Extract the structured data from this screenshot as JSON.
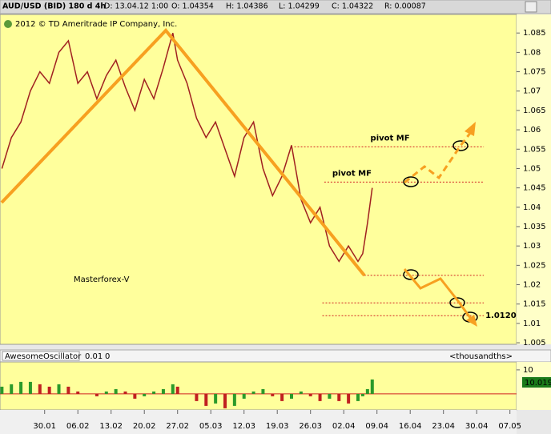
{
  "header": {
    "symbol": "AUD/USD (BID) 180 d 4h",
    "date": "D: 13.04.12 1:00",
    "open": "O: 1.04354",
    "high": "H: 1.04386",
    "low": "L: 1.04299",
    "close": "C: 1.04322",
    "range": "R: 0.00087"
  },
  "copyright": "2012 © TD Ameritrade IP Company, Inc.",
  "chart_data": [
    {
      "type": "line",
      "watermark": "Masterforex-V",
      "color": "#a02020",
      "x": [
        -9,
        -7,
        -5,
        -3,
        -1,
        1,
        3,
        5,
        7,
        9,
        11,
        13,
        15,
        17,
        19,
        21,
        23,
        25,
        27,
        28,
        30,
        32,
        34,
        36,
        38,
        40,
        42,
        44,
        46,
        48,
        50,
        52,
        54,
        56,
        58,
        60,
        62,
        64,
        66,
        67,
        68,
        69
      ],
      "values": [
        1.05,
        1.058,
        1.062,
        1.07,
        1.075,
        1.072,
        1.08,
        1.083,
        1.072,
        1.075,
        1.068,
        1.074,
        1.078,
        1.071,
        1.065,
        1.073,
        1.068,
        1.076,
        1.085,
        1.078,
        1.072,
        1.063,
        1.058,
        1.062,
        1.055,
        1.048,
        1.058,
        1.062,
        1.05,
        1.043,
        1.048,
        1.056,
        1.042,
        1.036,
        1.04,
        1.03,
        1.026,
        1.03,
        1.026,
        1.028,
        1.036,
        1.045
      ],
      "xlim": [
        -9.4,
        99.4
      ],
      "xticks": [
        {
          "value": 0,
          "label": "30.01"
        },
        {
          "value": 7,
          "label": "06.02"
        },
        {
          "value": 14,
          "label": "13.02"
        },
        {
          "value": 21,
          "label": "20.02"
        },
        {
          "value": 28,
          "label": "27.02"
        },
        {
          "value": 35,
          "label": "05.03"
        },
        {
          "value": 42,
          "label": "12.03"
        },
        {
          "value": 49,
          "label": "19.03"
        },
        {
          "value": 56,
          "label": "26.03"
        },
        {
          "value": 63,
          "label": "02.04"
        },
        {
          "value": 70,
          "label": "09.04"
        },
        {
          "value": 77,
          "label": "16.04"
        },
        {
          "value": 84,
          "label": "23.04"
        },
        {
          "value": 91,
          "label": "30.04"
        },
        {
          "value": 98,
          "label": "07.05"
        }
      ],
      "ylim": [
        1.0046,
        1.0898
      ],
      "yticks": [
        1.005,
        1.01,
        1.015,
        1.02,
        1.025,
        1.03,
        1.035,
        1.04,
        1.045,
        1.05,
        1.055,
        1.06,
        1.065,
        1.07,
        1.075,
        1.08,
        1.085
      ],
      "levels": [
        {
          "value": 1.0556,
          "from": 52.6,
          "to": 92.5,
          "text": "pivot MF"
        },
        {
          "value": 1.0465,
          "from": 58.9,
          "to": 92.5,
          "text": "pivot MF"
        },
        {
          "value": 1.0224,
          "from": 67.3,
          "to": 92.5
        },
        {
          "value": 1.0153,
          "from": 58.5,
          "to": 92.5
        },
        {
          "value": 1.012,
          "from": 58.5,
          "to": 92.5,
          "label": "1.0120"
        }
      ]
    },
    {
      "type": "bar",
      "title": "AwesomeOscillator",
      "param": "0.01",
      "param2": "0",
      "units": "<thousandths>",
      "marker_label": "10.019",
      "x": [
        -9,
        -7,
        -5,
        -3,
        -1,
        1,
        3,
        5,
        7,
        9,
        11,
        13,
        15,
        17,
        19,
        21,
        23,
        25,
        27,
        28,
        30,
        32,
        34,
        36,
        38,
        40,
        42,
        44,
        46,
        48,
        50,
        52,
        54,
        56,
        58,
        60,
        62,
        64,
        66,
        67,
        68,
        69
      ],
      "values": [
        3,
        4,
        5,
        5,
        4,
        3,
        4,
        3,
        1,
        0,
        -1,
        1,
        2,
        1,
        -2,
        -1,
        1,
        2,
        4,
        3,
        0,
        -3,
        -5,
        -4,
        -6,
        -5,
        -2,
        1,
        2,
        -1,
        -3,
        -2,
        1,
        -1,
        -3,
        -2,
        -3,
        -4,
        -3,
        -1,
        2,
        6
      ],
      "xlim": [
        -9.4,
        99.4
      ],
      "ylim": [
        -6.7,
        13.3
      ],
      "yticks": [
        10
      ]
    }
  ]
}
